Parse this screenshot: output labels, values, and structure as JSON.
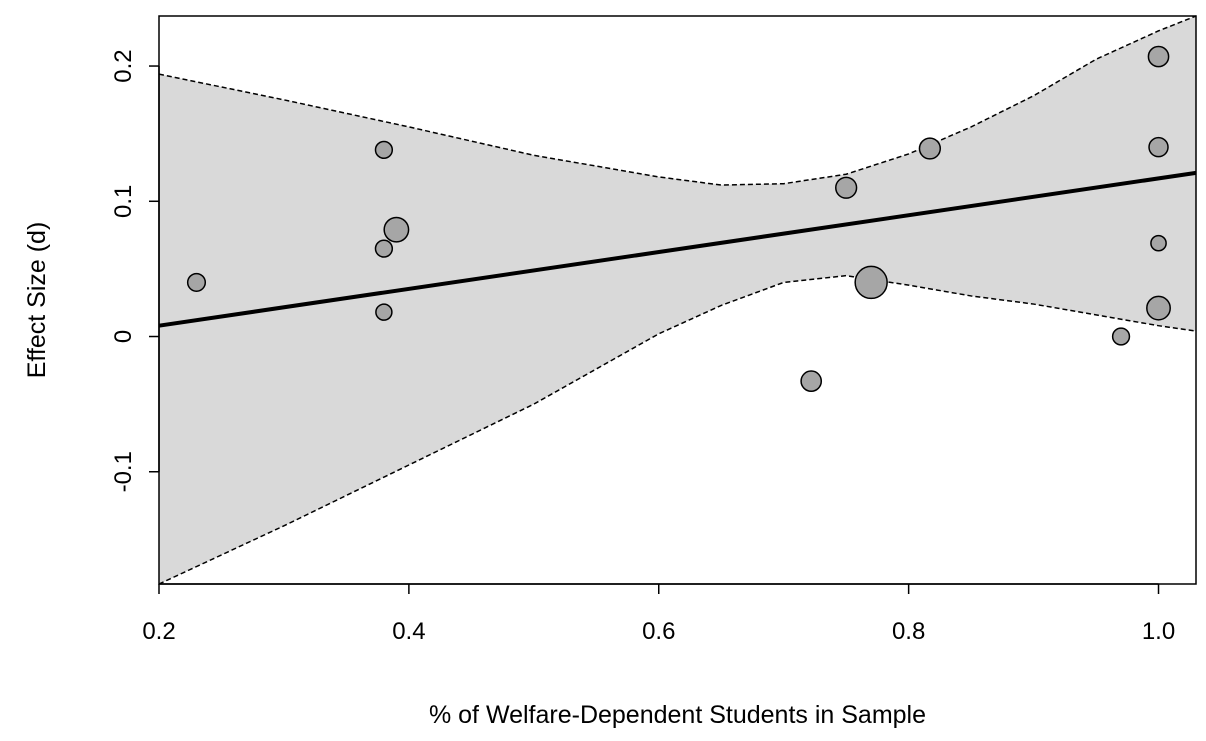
{
  "chart_data": {
    "type": "scatter",
    "title": "",
    "xlabel": "% of Welfare-Dependent Students in Sample",
    "ylabel": "Effect Size (d)",
    "xlim": [
      0.2,
      1.03
    ],
    "ylim": [
      -0.183,
      0.237
    ],
    "x_ticks": [
      {
        "value": 0.2,
        "label": "0.2"
      },
      {
        "value": 0.4,
        "label": "0.4"
      },
      {
        "value": 0.6,
        "label": "0.6"
      },
      {
        "value": 0.8,
        "label": "0.8"
      },
      {
        "value": 1.0,
        "label": "1.0"
      }
    ],
    "y_ticks": [
      {
        "value": -0.1,
        "label": "-0.1"
      },
      {
        "value": 0,
        "label": "0"
      },
      {
        "value": 0.1,
        "label": "0.1"
      },
      {
        "value": 0.2,
        "label": "0.2"
      }
    ],
    "grid": false,
    "legend": "none",
    "colors": {
      "band_fill": "#d9d9d9",
      "point_fill": "#a6a6a6",
      "point_stroke": "#000000",
      "line": "#000000"
    },
    "regression_line": {
      "x": [
        0.2,
        1.03
      ],
      "y": [
        0.008,
        0.121
      ]
    },
    "confidence_band": {
      "x": [
        0.2,
        0.3,
        0.4,
        0.5,
        0.6,
        0.65,
        0.7,
        0.75,
        0.8,
        0.85,
        0.9,
        0.95,
        1.0,
        1.03
      ],
      "upper": [
        0.194,
        0.175,
        0.155,
        0.134,
        0.118,
        0.112,
        0.113,
        0.12,
        0.135,
        0.155,
        0.178,
        0.205,
        0.226,
        0.237
      ],
      "lower": [
        -0.183,
        -0.14,
        -0.095,
        -0.05,
        0.002,
        0.023,
        0.04,
        0.045,
        0.038,
        0.03,
        0.024,
        0.016,
        0.008,
        0.004
      ]
    },
    "points": [
      {
        "x": 0.23,
        "y": 0.04,
        "weight": 0.4
      },
      {
        "x": 0.38,
        "y": 0.138,
        "weight": 0.35
      },
      {
        "x": 0.38,
        "y": 0.065,
        "weight": 0.35
      },
      {
        "x": 0.38,
        "y": 0.018,
        "weight": 0.3
      },
      {
        "x": 0.39,
        "y": 0.079,
        "weight": 1.0
      },
      {
        "x": 0.722,
        "y": -0.033,
        "weight": 0.6
      },
      {
        "x": 0.75,
        "y": 0.11,
        "weight": 0.65
      },
      {
        "x": 0.77,
        "y": 0.04,
        "weight": 2.0
      },
      {
        "x": 0.817,
        "y": 0.139,
        "weight": 0.65
      },
      {
        "x": 0.97,
        "y": 0.0,
        "weight": 0.35
      },
      {
        "x": 1.0,
        "y": 0.207,
        "weight": 0.6
      },
      {
        "x": 1.0,
        "y": 0.14,
        "weight": 0.5
      },
      {
        "x": 1.0,
        "y": 0.069,
        "weight": 0.25
      },
      {
        "x": 1.0,
        "y": 0.021,
        "weight": 0.9
      }
    ]
  }
}
